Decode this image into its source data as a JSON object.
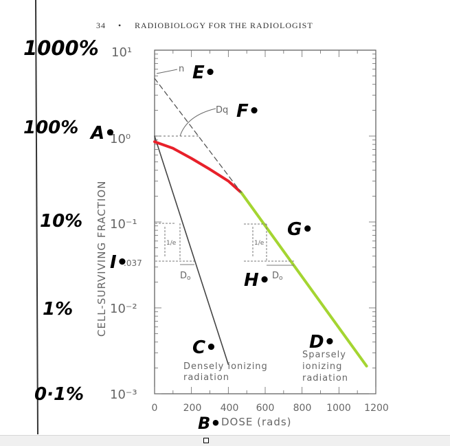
{
  "header": {
    "page_number": "34",
    "bullet": "•",
    "title": "RADIOBIOLOGY FOR THE RADIOLOGIST"
  },
  "chart_data": {
    "type": "line",
    "ylabel": "CELL-SURVIVING FRACTION",
    "xlabel": "DOSE (rads)",
    "xlim": [
      0,
      1200
    ],
    "ylim": [
      0.001,
      10
    ],
    "yscale": "log",
    "x_ticks": [
      "0",
      "200",
      "400",
      "600",
      "800",
      "1000",
      "1200"
    ],
    "y_ticks": [
      "10¹",
      "10⁰",
      "10⁻¹",
      "10⁻²",
      "10⁻³"
    ],
    "y_extra_tick": ".037",
    "series": [
      {
        "name": "Densely ionizing radiation",
        "color": "#444444",
        "x": [
          0,
          400
        ],
        "y": [
          1.0,
          0.0022
        ]
      },
      {
        "name": "Sparsely ionizing radiation (shoulder)",
        "color": "#e8202a",
        "x": [
          0,
          100,
          200,
          300,
          400,
          470
        ],
        "y": [
          0.86,
          0.72,
          0.55,
          0.41,
          0.3,
          0.22
        ]
      },
      {
        "name": "Sparsely ionizing radiation (exponential)",
        "color": "#a4d531",
        "x": [
          470,
          1150
        ],
        "y": [
          0.22,
          0.0021
        ]
      },
      {
        "name": "extrapolation",
        "color": "#555555",
        "dash": true,
        "x": [
          0,
          470
        ],
        "y": [
          4.7,
          0.22
        ]
      }
    ],
    "curve_labels": {
      "dense": [
        "Densely ionizing",
        "radiation"
      ],
      "sparse": [
        "Sparsely",
        "ionizing",
        "radiation"
      ]
    },
    "annotations": {
      "n": "n",
      "Dq": "Dq",
      "D0": "D",
      "D0_sub": "o",
      "one_over_e": "1/e"
    },
    "handwritten": {
      "percent": [
        "1000%",
        "100%",
        "10%",
        "1%",
        "0·1%"
      ],
      "letters": {
        "A": "A•",
        "B": "B•",
        "C": "C•",
        "D": "D•",
        "E": "E•",
        "F": "F•",
        "G": "G•",
        "H": "H•",
        "I": "I•"
      }
    }
  }
}
